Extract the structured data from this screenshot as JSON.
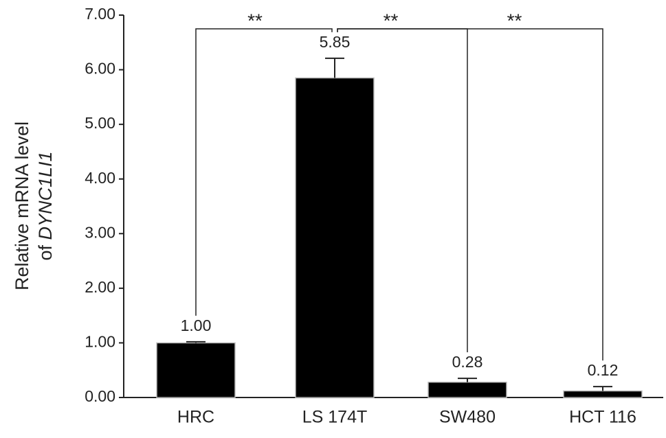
{
  "chart_data": {
    "type": "bar",
    "ylabel": {
      "line1": "Relative mRNA level",
      "line2_prefix": "of",
      "gene": "DYNC1LI1"
    },
    "categories": [
      "HRC",
      "LS 174T",
      "SW480",
      "HCT 116"
    ],
    "values": [
      1.0,
      5.85,
      0.28,
      0.12
    ],
    "value_labels": [
      "1.00",
      "5.85",
      "0.28",
      "0.12"
    ],
    "errors": [
      0.02,
      0.36,
      0.07,
      0.08
    ],
    "color": "#000000",
    "ylim": [
      0,
      7
    ],
    "yticks": [
      {
        "value": 0,
        "label": "0.00"
      },
      {
        "value": 1,
        "label": "1.00"
      },
      {
        "value": 2,
        "label": "2.00"
      },
      {
        "value": 3,
        "label": "3.00"
      },
      {
        "value": 4,
        "label": "4.00"
      },
      {
        "value": 5,
        "label": "5.00"
      },
      {
        "value": 6,
        "label": "6.00"
      },
      {
        "value": 7,
        "label": "7.00"
      }
    ],
    "significance": [
      {
        "pair": [
          "HRC",
          "LS 174T"
        ],
        "label": "**"
      },
      {
        "pair": [
          "LS 174T",
          "SW480"
        ],
        "label": "**"
      },
      {
        "pair": [
          "LS 174T",
          "HCT 116"
        ],
        "label": "**"
      }
    ]
  }
}
